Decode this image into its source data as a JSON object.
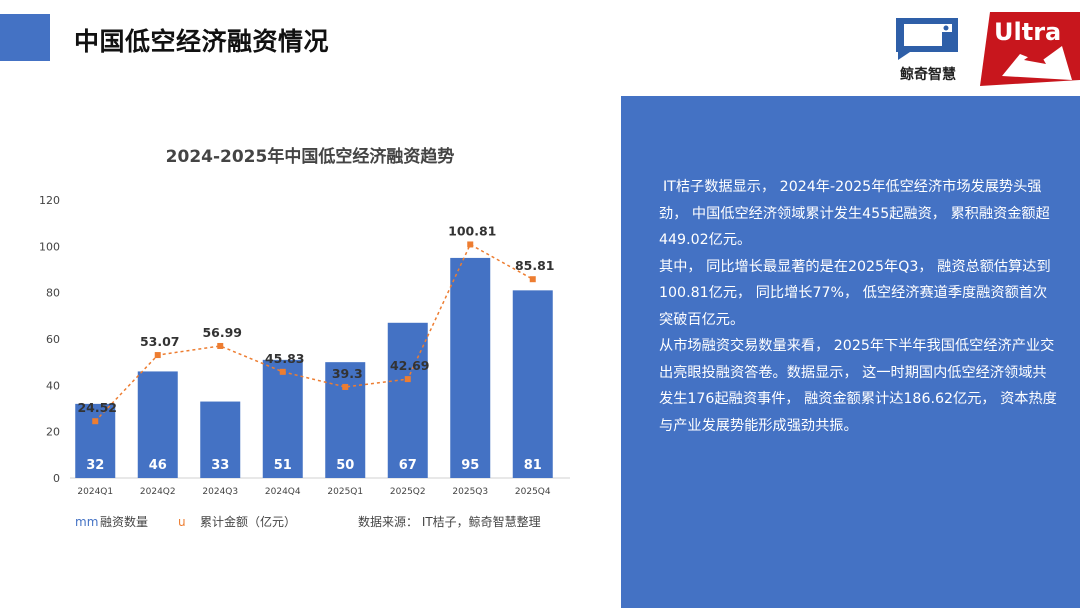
{
  "header": {
    "title": "中国低空经济融资情况"
  },
  "logos": {
    "jingqi_label": "鲸奇智慧",
    "ultra_label": "Ultra"
  },
  "chart_data": {
    "type": "bar",
    "title": "2024-2025年中国低空经济融资趋势",
    "categories": [
      "2024Q1",
      "2024Q2",
      "2024Q3",
      "2024Q4",
      "2025Q1",
      "2025Q2",
      "2025Q3",
      "2025Q4"
    ],
    "series": [
      {
        "name": "融资数量",
        "type": "bar",
        "values": [
          32,
          46,
          33,
          51,
          50,
          67,
          95,
          81
        ]
      },
      {
        "name": "累计金额（亿元）",
        "type": "line",
        "values": [
          24.52,
          53.07,
          56.99,
          45.83,
          39.3,
          42.69,
          100.81,
          85.81
        ]
      }
    ],
    "ylim": [
      0,
      120
    ],
    "yticks": [
      0,
      20,
      40,
      60,
      80,
      100,
      120
    ],
    "bar_color": "#4472C4",
    "line_color": "#ED7D31",
    "legend_position": "bottom",
    "legend_markers": {
      "bar": "mm",
      "line": "u"
    },
    "source_note": "数据来源：  IT桔子，鲸奇智慧整理"
  },
  "panel": {
    "paragraphs": [
      "IT桔子数据显示， 2024年-2025年低空经济市场发展势头强劲， 中国低空经济领域累计发生455起融资， 累积融资金额超449.02亿元。",
      "其中， 同比增长最显著的是在2025年Q3， 融资总额估算达到100.81亿元， 同比增长77%， 低空经济赛道季度融资额首次突破百亿元。",
      "从市场融资交易数量来看， 2025年下半年我国低空经济产业交出亮眼投融资答卷。数据显示， 这一时期国内低空经济领域共发生176起融资事件， 融资金额累计达186.62亿元， 资本热度与产业发展势能形成强劲共振。"
    ]
  }
}
